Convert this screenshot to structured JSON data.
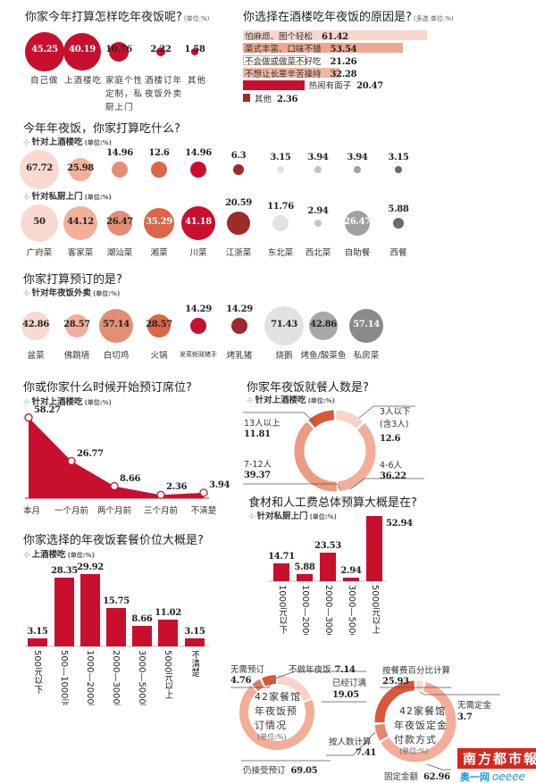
{
  "chart_data": [
    {
      "type": "bubble",
      "title": "你家今年打算怎样吃年夜饭呢?",
      "unit": "(单位:%)",
      "categories": [
        "自己做",
        "上酒楼吃",
        "家庭个性定制，私厨上门",
        "酒楼订年夜饭外卖",
        "其他"
      ],
      "values": [
        45.25,
        40.19,
        10.76,
        2.22,
        1.58
      ]
    },
    {
      "type": "bar",
      "orientation": "horizontal",
      "title": "你选择在酒楼吃年夜饭的原因是?",
      "unit": "(多选 单位:%)",
      "categories": [
        "怕麻烦、图个轻松",
        "菜式丰富、口味不错",
        "不会做或做菜不好吃",
        "不想让长辈辛苦操持",
        "热闹有面子",
        "其他"
      ],
      "values": [
        61.42,
        53.54,
        21.26,
        32.28,
        20.47,
        2.36
      ],
      "colors": [
        "#f9d6cc",
        "#f0a78f",
        "#ffffff",
        "#f2b6a2",
        "#c8102e",
        "#9e2a2b"
      ]
    },
    {
      "type": "bubble",
      "title": "今年年夜饭，你家打算吃什么?",
      "categories": [
        "广府菜",
        "客家菜",
        "潮汕菜",
        "湘菜",
        "川菜",
        "江浙菜",
        "东北菜",
        "西北菜",
        "自助餐",
        "西餐"
      ],
      "series": [
        {
          "name": "针对上酒楼吃",
          "unit": "(单位:%)",
          "values": [
            67.72,
            25.98,
            14.96,
            12.6,
            14.96,
            6.3,
            3.15,
            3.94,
            3.94,
            3.15
          ]
        },
        {
          "name": "针对私厨上门",
          "unit": "(单位:%)",
          "values": [
            50,
            44.12,
            26.47,
            35.29,
            41.18,
            20.59,
            11.76,
            2.94,
            26.47,
            5.88
          ]
        }
      ],
      "colors": [
        "#f9d9d0",
        "#f2b09a",
        "#e48e74",
        "#dc6647",
        "#c8102e",
        "#9e2a2b",
        "#e2e2e2",
        "#c4c4c4",
        "#a0a0a0",
        "#6a6a6a"
      ]
    },
    {
      "type": "bubble",
      "title": "你家打算预订的是?",
      "subtitle": "针对年夜饭外卖",
      "unit": "(单位:%)",
      "categories": [
        "盆菜",
        "佛跳墙",
        "白切鸡",
        "火锅",
        "发菜蚝豉猪手",
        "烤乳猪",
        "烧鹅",
        "烤鱼/酸菜鱼",
        "私房菜"
      ],
      "values": [
        42.86,
        28.57,
        57.14,
        28.57,
        14.29,
        14.29,
        71.43,
        42.86,
        57.14
      ],
      "colors": [
        "#f9d9d0",
        "#f2b09a",
        "#e48e74",
        "#dc6647",
        "#c8102e",
        "#9e2a2b",
        "#e2e2e2",
        "#a8a8a8",
        "#8a8a8a"
      ]
    },
    {
      "type": "area",
      "title": "你或你家什么时候开始预订席位?",
      "subtitle": "针对上酒楼吃",
      "unit": "(单位:%)",
      "categories": [
        "本月",
        "一个月前",
        "两个月前",
        "三个月前",
        "不清楚"
      ],
      "values": [
        58.27,
        26.77,
        8.66,
        2.36,
        3.94
      ]
    },
    {
      "type": "pie",
      "title": "你家年夜饭就餐人数是?",
      "subtitle": "针对上酒楼吃",
      "unit": "(单位:%)",
      "categories": [
        "3人以下(含3人)",
        "4-6人",
        "7-12人",
        "13人以上"
      ],
      "values": [
        12.6,
        36.22,
        39.37,
        11.81
      ],
      "colors": [
        "#f8d3c8",
        "#f2ae98",
        "#ec9a80",
        "#d9573a"
      ]
    },
    {
      "type": "bar",
      "title": "你家选择的年夜饭套餐价位大概是?",
      "subtitle": "上酒楼吃",
      "unit": "(单位:%)",
      "categories": [
        "500元以下",
        "500—1000元",
        "1000—2000元",
        "2000—3000元",
        "3000—5000元",
        "5000元以上",
        "不清楚"
      ],
      "values": [
        3.15,
        28.35,
        29.92,
        15.75,
        8.66,
        11.02,
        3.15
      ]
    },
    {
      "type": "bar",
      "title": "食材和人工费总体预算大概是在?",
      "subtitle": "针对私厨上门",
      "unit": "(单位:%)",
      "categories": [
        "1000元以下",
        "1000—2000元",
        "2000—3000元",
        "3000—5000元",
        "5000元以上"
      ],
      "values": [
        14.71,
        5.88,
        23.53,
        2.94,
        52.94
      ]
    },
    {
      "type": "pie",
      "center_lines": [
        "42家餐馆",
        "年夜饭预",
        "订情况"
      ],
      "unit": "(单位:%)",
      "categories": [
        "已经订满",
        "仍接受预订",
        "无需预订",
        "不做年夜饭"
      ],
      "values": [
        19.05,
        69.05,
        4.76,
        7.14
      ],
      "colors": [
        "#f8d3c8",
        "#f2ae98",
        "#e07a5f",
        "#d9573a"
      ]
    },
    {
      "type": "pie",
      "center_lines": [
        "42家餐馆",
        "年夜饭定金",
        "付款方式"
      ],
      "unit": "(单位:%)",
      "categories": [
        "无需定金",
        "固定金额",
        "按人数计算",
        "按餐费百分比计算"
      ],
      "values": [
        3.7,
        62.96,
        7.41,
        25.93
      ],
      "colors": [
        "#f8dcd2",
        "#f2ae98",
        "#e5876b",
        "#d9573a"
      ]
    }
  ],
  "logo": {
    "name": "南方都市報",
    "site_cn": "奥一网",
    "site_en": "oeeee"
  }
}
